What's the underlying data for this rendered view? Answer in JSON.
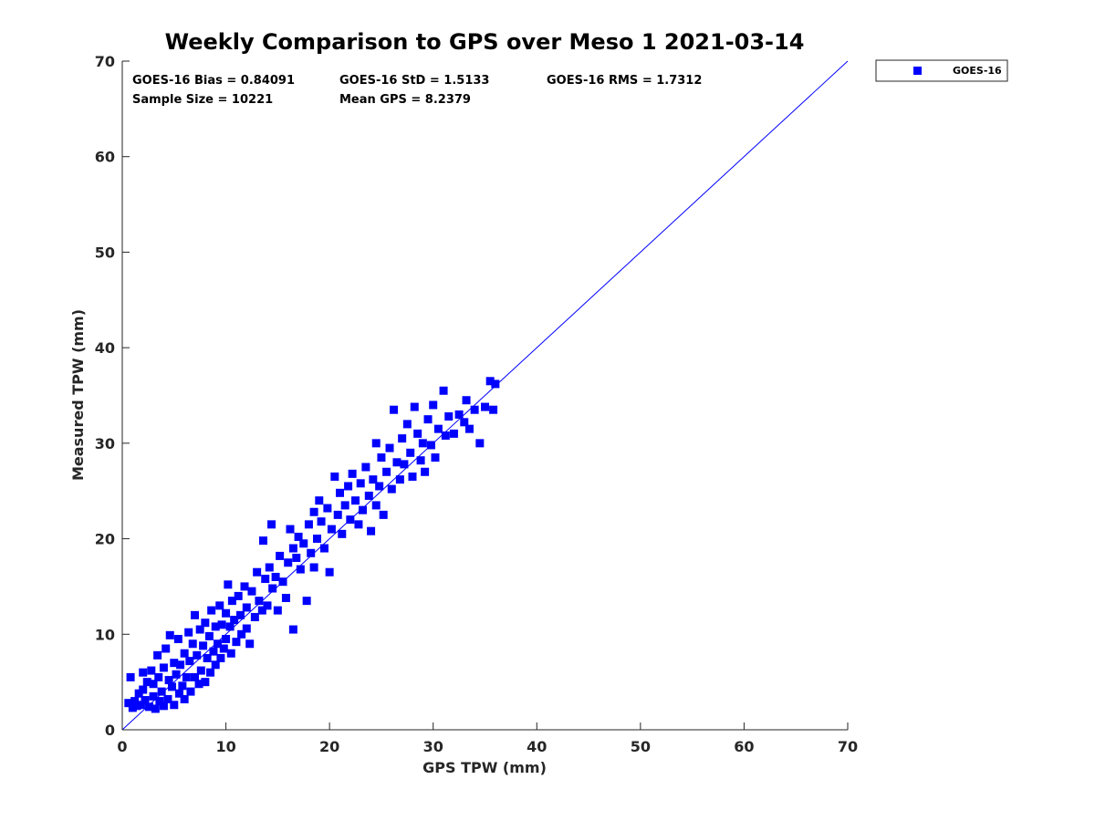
{
  "chart_data": {
    "type": "scatter",
    "title": "Weekly Comparison to GPS over Meso 1 2021-03-14",
    "xlabel": "GPS TPW (mm)",
    "ylabel": "Measured TPW (mm)",
    "xlim": [
      0,
      70
    ],
    "ylim": [
      0,
      70
    ],
    "xticks": [
      "0",
      "10",
      "20",
      "30",
      "40",
      "50",
      "60",
      "70"
    ],
    "yticks": [
      "0",
      "10",
      "20",
      "30",
      "40",
      "50",
      "60",
      "70"
    ],
    "grid": false,
    "legend_position": "outside-top-right",
    "stats": {
      "bias": "GOES-16 Bias = 0.84091",
      "std": "GOES-16 StD = 1.5133",
      "rms": "GOES-16 RMS = 1.7312",
      "sample_size": "Sample Size = 10221",
      "mean_gps": "Mean GPS = 8.2379"
    },
    "reference_line": {
      "x": [
        0,
        70
      ],
      "y": [
        0,
        70
      ],
      "color": "#0000ff"
    },
    "series": [
      {
        "name": "GOES-16",
        "marker": "square",
        "color": "#0000ff",
        "points": [
          [
            0.6,
            2.8
          ],
          [
            0.8,
            5.5
          ],
          [
            1.0,
            2.3
          ],
          [
            1.2,
            3.0
          ],
          [
            1.4,
            2.5
          ],
          [
            1.6,
            3.8
          ],
          [
            1.8,
            2.6
          ],
          [
            2.0,
            4.2
          ],
          [
            2.0,
            6.0
          ],
          [
            2.2,
            3.1
          ],
          [
            2.4,
            5.0
          ],
          [
            2.6,
            2.4
          ],
          [
            2.8,
            6.2
          ],
          [
            3.0,
            3.5
          ],
          [
            3.0,
            4.8
          ],
          [
            3.2,
            2.2
          ],
          [
            3.4,
            7.8
          ],
          [
            3.5,
            5.5
          ],
          [
            3.6,
            3.0
          ],
          [
            3.8,
            4.0
          ],
          [
            4.0,
            6.5
          ],
          [
            4.0,
            2.5
          ],
          [
            4.2,
            8.5
          ],
          [
            4.4,
            3.2
          ],
          [
            4.5,
            5.2
          ],
          [
            4.6,
            9.9
          ],
          [
            4.8,
            4.5
          ],
          [
            5.0,
            7.0
          ],
          [
            5.0,
            2.6
          ],
          [
            5.2,
            5.8
          ],
          [
            5.4,
            9.5
          ],
          [
            5.5,
            3.8
          ],
          [
            5.6,
            6.8
          ],
          [
            5.8,
            4.6
          ],
          [
            6.0,
            8.0
          ],
          [
            6.0,
            3.2
          ],
          [
            6.2,
            5.5
          ],
          [
            6.4,
            10.2
          ],
          [
            6.5,
            7.2
          ],
          [
            6.6,
            4.0
          ],
          [
            6.8,
            9.0
          ],
          [
            7.0,
            5.5
          ],
          [
            7.0,
            12.0
          ],
          [
            7.2,
            7.8
          ],
          [
            7.4,
            4.8
          ],
          [
            7.5,
            10.5
          ],
          [
            7.6,
            6.2
          ],
          [
            7.8,
            8.8
          ],
          [
            8.0,
            5.0
          ],
          [
            8.0,
            11.2
          ],
          [
            8.2,
            7.5
          ],
          [
            8.4,
            9.8
          ],
          [
            8.5,
            6.0
          ],
          [
            8.6,
            12.5
          ],
          [
            8.8,
            8.2
          ],
          [
            9.0,
            10.8
          ],
          [
            9.0,
            6.8
          ],
          [
            9.2,
            9.0
          ],
          [
            9.4,
            13.0
          ],
          [
            9.5,
            7.5
          ],
          [
            9.6,
            11.0
          ],
          [
            9.8,
            8.5
          ],
          [
            10.0,
            12.2
          ],
          [
            10.0,
            9.5
          ],
          [
            10.2,
            15.2
          ],
          [
            10.4,
            10.8
          ],
          [
            10.5,
            8.0
          ],
          [
            10.6,
            13.5
          ],
          [
            10.8,
            11.5
          ],
          [
            11.0,
            9.2
          ],
          [
            11.2,
            14.0
          ],
          [
            11.4,
            12.0
          ],
          [
            11.5,
            10.0
          ],
          [
            11.8,
            15.0
          ],
          [
            12.0,
            12.8
          ],
          [
            12.0,
            10.6
          ],
          [
            12.3,
            9.0
          ],
          [
            12.5,
            14.5
          ],
          [
            12.8,
            11.8
          ],
          [
            13.0,
            16.5
          ],
          [
            13.2,
            13.5
          ],
          [
            13.5,
            12.5
          ],
          [
            13.6,
            19.8
          ],
          [
            13.8,
            15.8
          ],
          [
            14.0,
            13.0
          ],
          [
            14.2,
            17.0
          ],
          [
            14.4,
            21.5
          ],
          [
            14.5,
            14.8
          ],
          [
            14.8,
            16.0
          ],
          [
            15.0,
            12.5
          ],
          [
            15.2,
            18.2
          ],
          [
            15.5,
            15.5
          ],
          [
            15.8,
            13.8
          ],
          [
            16.0,
            17.5
          ],
          [
            16.2,
            21.0
          ],
          [
            16.5,
            19.0
          ],
          [
            16.5,
            10.5
          ],
          [
            16.8,
            18.0
          ],
          [
            17.0,
            20.2
          ],
          [
            17.2,
            16.8
          ],
          [
            17.5,
            19.5
          ],
          [
            17.8,
            13.5
          ],
          [
            18.0,
            21.5
          ],
          [
            18.2,
            18.5
          ],
          [
            18.5,
            22.8
          ],
          [
            18.5,
            17.0
          ],
          [
            18.8,
            20.0
          ],
          [
            19.0,
            24.0
          ],
          [
            19.2,
            21.8
          ],
          [
            19.5,
            19.0
          ],
          [
            19.8,
            23.2
          ],
          [
            20.0,
            16.5
          ],
          [
            20.2,
            21.0
          ],
          [
            20.5,
            26.5
          ],
          [
            20.8,
            22.5
          ],
          [
            21.0,
            24.8
          ],
          [
            21.2,
            20.5
          ],
          [
            21.5,
            23.5
          ],
          [
            21.8,
            25.5
          ],
          [
            22.0,
            22.0
          ],
          [
            22.2,
            26.8
          ],
          [
            22.5,
            24.0
          ],
          [
            22.8,
            21.5
          ],
          [
            23.0,
            25.8
          ],
          [
            23.2,
            23.0
          ],
          [
            23.5,
            27.5
          ],
          [
            23.8,
            24.5
          ],
          [
            24.0,
            20.8
          ],
          [
            24.2,
            26.2
          ],
          [
            24.5,
            30.0
          ],
          [
            24.5,
            23.5
          ],
          [
            24.8,
            25.5
          ],
          [
            25.0,
            28.5
          ],
          [
            25.2,
            22.5
          ],
          [
            25.5,
            27.0
          ],
          [
            25.8,
            29.5
          ],
          [
            26.0,
            25.2
          ],
          [
            26.2,
            33.5
          ],
          [
            26.5,
            28.0
          ],
          [
            26.8,
            26.2
          ],
          [
            27.0,
            30.5
          ],
          [
            27.2,
            27.8
          ],
          [
            27.5,
            32.0
          ],
          [
            27.8,
            29.0
          ],
          [
            28.0,
            26.5
          ],
          [
            28.2,
            33.8
          ],
          [
            28.5,
            31.0
          ],
          [
            28.8,
            28.2
          ],
          [
            29.0,
            30.0
          ],
          [
            29.2,
            27.0
          ],
          [
            29.5,
            32.5
          ],
          [
            29.8,
            29.8
          ],
          [
            30.0,
            34.0
          ],
          [
            30.2,
            28.5
          ],
          [
            30.5,
            31.5
          ],
          [
            31.0,
            35.5
          ],
          [
            31.2,
            30.8
          ],
          [
            31.5,
            32.8
          ],
          [
            32.0,
            31.0
          ],
          [
            32.5,
            33.0
          ],
          [
            33.0,
            32.2
          ],
          [
            33.2,
            34.5
          ],
          [
            33.5,
            31.5
          ],
          [
            34.0,
            33.5
          ],
          [
            34.5,
            30.0
          ],
          [
            35.0,
            33.8
          ],
          [
            35.5,
            36.5
          ],
          [
            35.8,
            33.5
          ],
          [
            36.0,
            36.2
          ]
        ]
      }
    ]
  }
}
